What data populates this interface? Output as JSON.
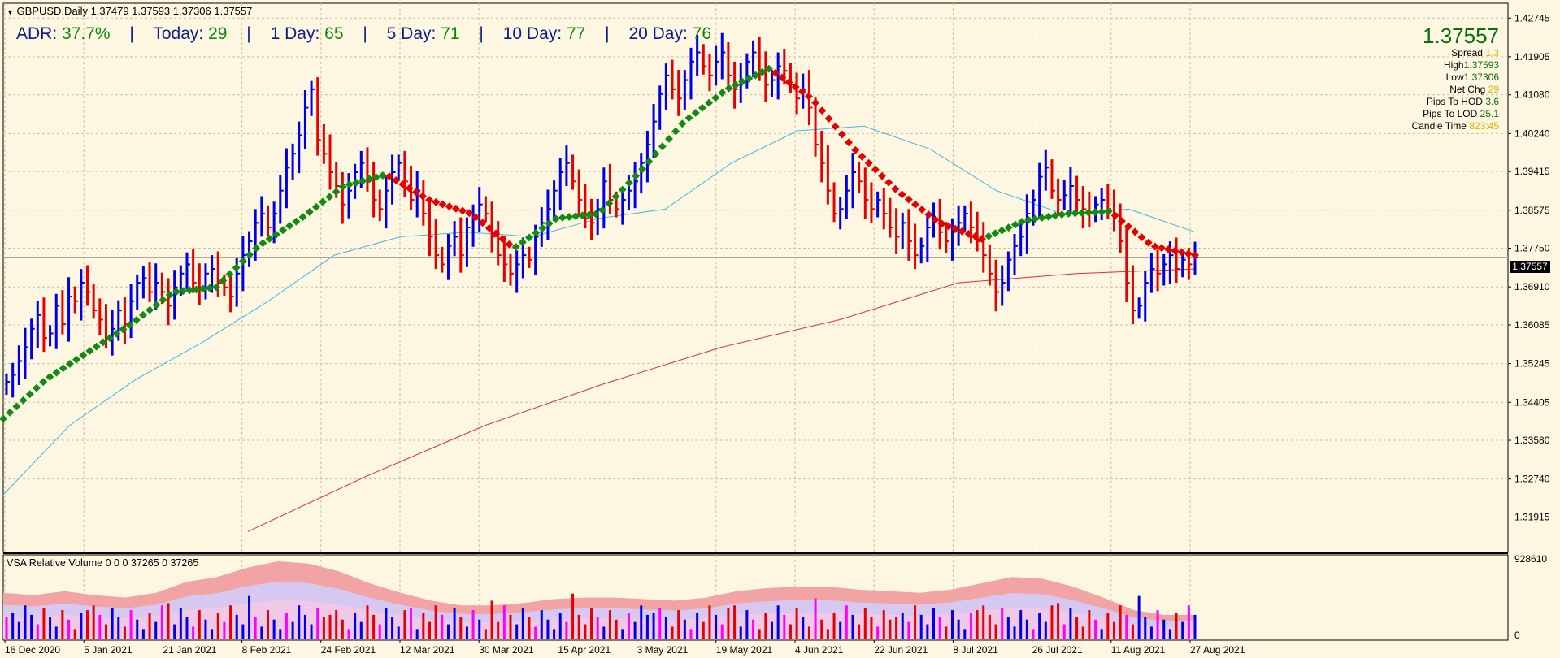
{
  "header": {
    "text": "GBPUSD,Daily  1.37479 1.37593 1.37306 1.37557"
  },
  "adr": {
    "adr_label": "ADR:",
    "adr_value": "37.7%",
    "today_label": "Today:",
    "today_value": "29",
    "d1_label": "1 Day:",
    "d1_value": "65",
    "d5_label": "5 Day:",
    "d5_value": "71",
    "d10_label": "10 Day:",
    "d10_value": "77",
    "d20_label": "20 Day:",
    "d20_value": "76",
    "sep": "|"
  },
  "info": {
    "price": "1.37557",
    "spread_label": "Spread",
    "spread_value": "1.3",
    "high_label": "High",
    "high_value": "1.37593",
    "low_label": "Low",
    "low_value": "1.37306",
    "netchg_label": "Net Chg",
    "netchg_value": "29",
    "hod_label": "Pips To HOD",
    "hod_value": "3.6",
    "lod_label": "Pips To LOD",
    "lod_value": "25.1",
    "ct_label": "Candle Time",
    "ct_value": "823:45"
  },
  "price_tag": "1.37557",
  "vsa": {
    "title": "VSA Relative Volume 0 0 0 37265 0 37265",
    "max_label": "928610",
    "zero_label": "0"
  },
  "colors": {
    "up": "#0000e6",
    "down": "#e60000",
    "ma_up": "#138a13",
    "ma_down": "#e60000",
    "sma_blue": "#3fb9e8",
    "sma_red": "#e03030",
    "bg": "#fdf6e0",
    "grid": "#c8c2a8"
  },
  "chart_data": {
    "type": "ohlc",
    "symbol": "GBPUSD",
    "timeframe": "Daily",
    "ylim": [
      1.315,
      1.4275
    ],
    "y_ticks": [
      "1.42745",
      "1.41905",
      "1.41080",
      "1.40240",
      "1.39415",
      "1.38575",
      "1.37750",
      "1.36910",
      "1.36085",
      "1.35245",
      "1.34405",
      "1.33580",
      "1.32740",
      "1.31915"
    ],
    "x_tick_labels": [
      "16 Dec 2020",
      "5 Jan 2021",
      "21 Jan 2021",
      "8 Feb 2021",
      "24 Feb 2021",
      "12 Mar 2021",
      "30 Mar 2021",
      "15 Apr 2021",
      "3 May 2021",
      "19 May 2021",
      "4 Jun 2021",
      "22 Jun 2021",
      "8 Jul 2021",
      "26 Jul 2021",
      "11 Aug 2021",
      "27 Aug 2021"
    ],
    "closes": [
      1.3485,
      1.35,
      1.353,
      1.356,
      1.36,
      1.363,
      1.358,
      1.359,
      1.365,
      1.361,
      1.367,
      1.366,
      1.37,
      1.368,
      1.364,
      1.362,
      1.358,
      1.36,
      1.364,
      1.361,
      1.366,
      1.37,
      1.371,
      1.368,
      1.37,
      1.368,
      1.365,
      1.369,
      1.372,
      1.374,
      1.37,
      1.369,
      1.372,
      1.373,
      1.37,
      1.369,
      1.367,
      1.372,
      1.376,
      1.379,
      1.383,
      1.385,
      1.382,
      1.385,
      1.39,
      1.395,
      1.398,
      1.402,
      1.408,
      1.412,
      1.401,
      1.398,
      1.394,
      1.391,
      1.387,
      1.39,
      1.394,
      1.396,
      1.392,
      1.388,
      1.386,
      1.39,
      1.394,
      1.396,
      1.392,
      1.388,
      1.39,
      1.385,
      1.38,
      1.376,
      1.374,
      1.378,
      1.38,
      1.376,
      1.382,
      1.384,
      1.387,
      1.385,
      1.38,
      1.376,
      1.374,
      1.372,
      1.374,
      1.376,
      1.375,
      1.38,
      1.383,
      1.386,
      1.39,
      1.394,
      1.396,
      1.392,
      1.388,
      1.384,
      1.383,
      1.386,
      1.392,
      1.388,
      1.386,
      1.388,
      1.39,
      1.392,
      1.396,
      1.4,
      1.405,
      1.411,
      1.415,
      1.412,
      1.41,
      1.414,
      1.418,
      1.42,
      1.417,
      1.415,
      1.418,
      1.42,
      1.415,
      1.412,
      1.414,
      1.418,
      1.42,
      1.416,
      1.413,
      1.414,
      1.417,
      1.416,
      1.413,
      1.41,
      1.412,
      1.408,
      1.4,
      1.396,
      1.39,
      1.385,
      1.386,
      1.39,
      1.394,
      1.392,
      1.388,
      1.386,
      1.388,
      1.385,
      1.382,
      1.38,
      1.383,
      1.379,
      1.376,
      1.378,
      1.382,
      1.384,
      1.381,
      1.379,
      1.381,
      1.383,
      1.385,
      1.382,
      1.379,
      1.376,
      1.372,
      1.368,
      1.37,
      1.375,
      1.378,
      1.38,
      1.385,
      1.388,
      1.393,
      1.395,
      1.39,
      1.388,
      1.389,
      1.391,
      1.388,
      1.386,
      1.385,
      1.387,
      1.388,
      1.386,
      1.385,
      1.379,
      1.37,
      1.364,
      1.365,
      1.37,
      1.373,
      1.372,
      1.374,
      1.376,
      1.373,
      1.375,
      1.374,
      1.3755
    ],
    "ma_fast_approx": [
      1.3405,
      1.349,
      1.355,
      1.361,
      1.368,
      1.369,
      1.378,
      1.384,
      1.391,
      1.3935,
      1.388,
      1.385,
      1.3775,
      1.384,
      1.385,
      1.3945,
      1.405,
      1.412,
      1.4165,
      1.41,
      1.399,
      1.39,
      1.383,
      1.3795,
      1.3835,
      1.385,
      1.3855,
      1.378,
      1.376
    ],
    "ma_mid_approx": [
      1.324,
      1.339,
      1.349,
      1.357,
      1.366,
      1.376,
      1.38,
      1.381,
      1.38,
      1.384,
      1.386,
      1.396,
      1.403,
      1.404,
      1.399,
      1.39,
      1.385,
      1.386,
      1.381
    ],
    "ma_slow_approx": [
      1.316,
      1.328,
      1.339,
      1.348,
      1.356,
      1.362,
      1.37,
      1.372,
      1.373
    ]
  }
}
